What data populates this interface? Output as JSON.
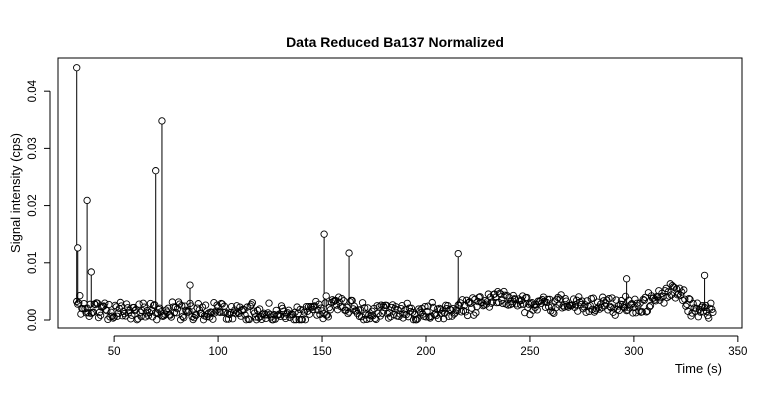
{
  "chart_data": {
    "type": "scatter",
    "title": "Data Reduced Ba137 Normalized",
    "xlabel": "Time (s)",
    "ylabel": "Signal intensity (cps)",
    "xlim": [
      23,
      352
    ],
    "ylim": [
      -0.0014,
      0.0458
    ],
    "x_ticks": [
      50,
      100,
      150,
      200,
      250,
      300,
      350
    ],
    "x_tick_labels": [
      "50",
      "100",
      "150",
      "200",
      "250",
      "300",
      "350"
    ],
    "y_ticks": [
      0.0,
      0.01,
      0.02,
      0.03,
      0.04
    ],
    "y_tick_labels": [
      "0.00",
      "0.01",
      "0.02",
      "0.03",
      "0.04"
    ],
    "x_range": [
      32,
      338
    ],
    "x_step": 0.5,
    "point_style": "open-circle",
    "baseline_profile": [
      {
        "x": 32,
        "y": 0.003
      },
      {
        "x": 45,
        "y": 0.0016
      },
      {
        "x": 80,
        "y": 0.0016
      },
      {
        "x": 120,
        "y": 0.0014
      },
      {
        "x": 140,
        "y": 0.0009
      },
      {
        "x": 150,
        "y": 0.0018
      },
      {
        "x": 160,
        "y": 0.003
      },
      {
        "x": 170,
        "y": 0.0015
      },
      {
        "x": 200,
        "y": 0.0011
      },
      {
        "x": 215,
        "y": 0.0018
      },
      {
        "x": 228,
        "y": 0.003
      },
      {
        "x": 236,
        "y": 0.0042
      },
      {
        "x": 250,
        "y": 0.0025
      },
      {
        "x": 280,
        "y": 0.0028
      },
      {
        "x": 300,
        "y": 0.0022
      },
      {
        "x": 310,
        "y": 0.0035
      },
      {
        "x": 322,
        "y": 0.0055
      },
      {
        "x": 328,
        "y": 0.0018
      },
      {
        "x": 338,
        "y": 0.0015
      }
    ],
    "spikes": [
      {
        "x": 32,
        "y": 0.0441
      },
      {
        "x": 32.5,
        "y": 0.0126
      },
      {
        "x": 37,
        "y": 0.0209
      },
      {
        "x": 39,
        "y": 0.0084
      },
      {
        "x": 70,
        "y": 0.0261
      },
      {
        "x": 73,
        "y": 0.0348
      },
      {
        "x": 86.5,
        "y": 0.0061
      },
      {
        "x": 151,
        "y": 0.015
      },
      {
        "x": 152,
        "y": 0.0042
      },
      {
        "x": 163,
        "y": 0.0117
      },
      {
        "x": 215.5,
        "y": 0.0116
      },
      {
        "x": 296.5,
        "y": 0.0072
      },
      {
        "x": 334,
        "y": 0.0078
      }
    ],
    "grid": false,
    "legend": "none"
  }
}
